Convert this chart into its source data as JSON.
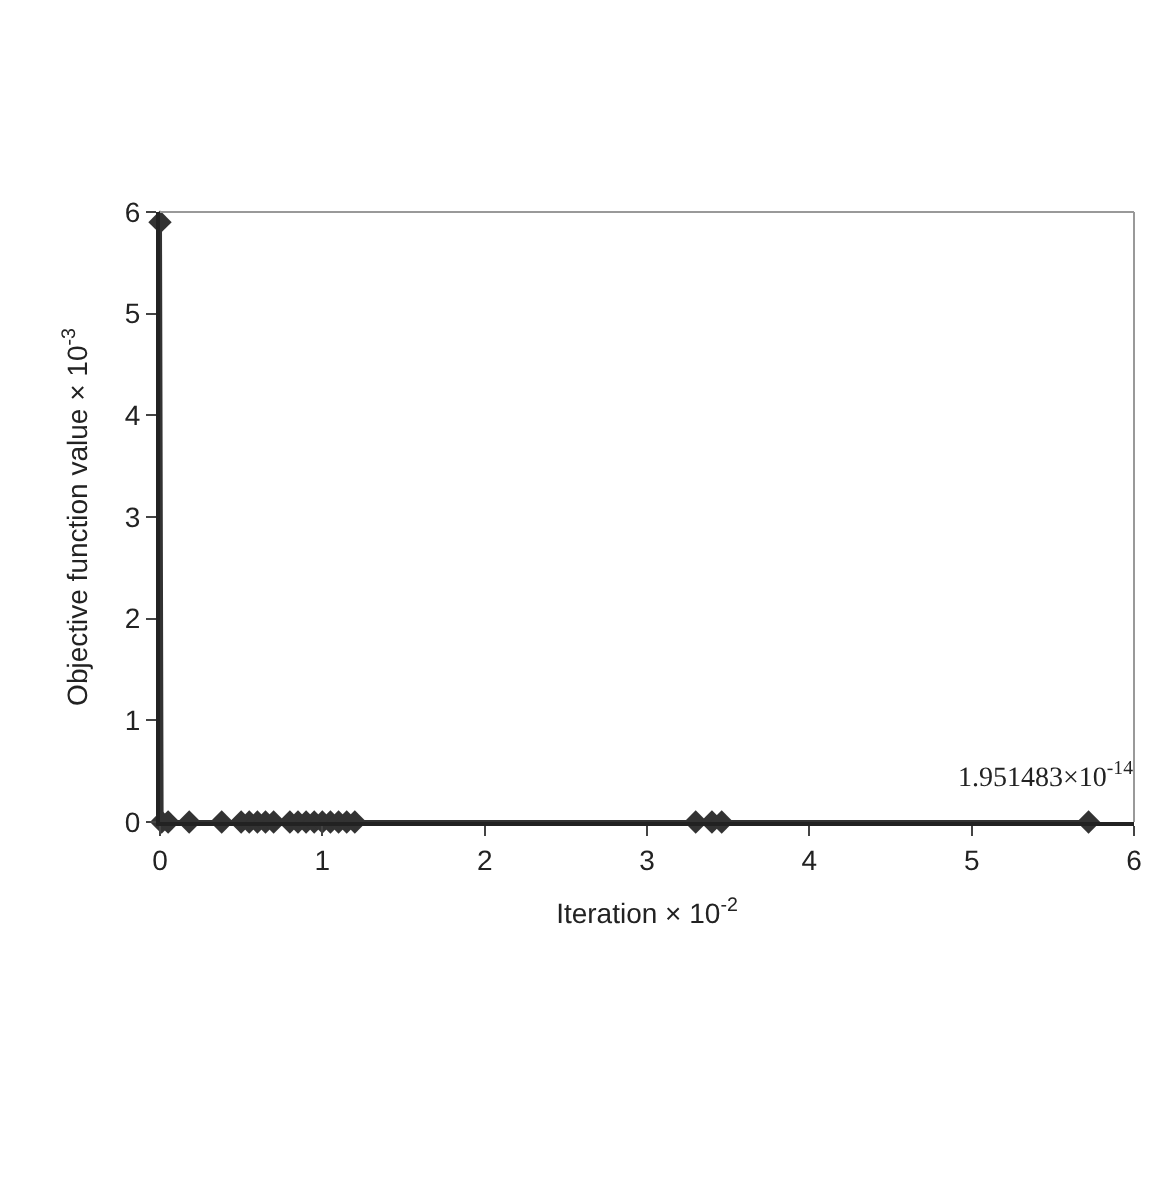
{
  "chart_data": {
    "type": "line",
    "xlabel": "Iteration × 10$^{-2}$",
    "ylabel": "Objective function value × 10$^{-3}$",
    "series": [
      {
        "color": "#333333",
        "x": [
          0,
          0.01,
          0.05,
          0.18,
          0.38,
          0.5,
          0.55,
          0.6,
          0.65,
          0.7,
          0.8,
          0.85,
          0.9,
          0.95,
          1.0,
          1.05,
          1.1,
          1.15,
          1.2,
          3.3,
          3.4,
          3.46,
          5.72
        ],
        "values": [
          5.9,
          0,
          0,
          0,
          0,
          0,
          0,
          0,
          0,
          0,
          0,
          0,
          0,
          0,
          0,
          0,
          0,
          0,
          0,
          0,
          0,
          0,
          0
        ]
      }
    ],
    "xlim": [
      0,
      6
    ],
    "xticks": [
      0,
      1,
      2,
      3,
      4,
      5,
      6
    ],
    "ylim": [
      0,
      6
    ],
    "yticks": [
      0,
      1,
      2,
      3,
      4,
      5,
      6
    ],
    "annotations": [
      {
        "text": "1.951483×10$^{-14}$",
        "x": 5.72,
        "y": 0
      }
    ],
    "legend": false,
    "marker": "diamond",
    "line_style": "solid"
  }
}
